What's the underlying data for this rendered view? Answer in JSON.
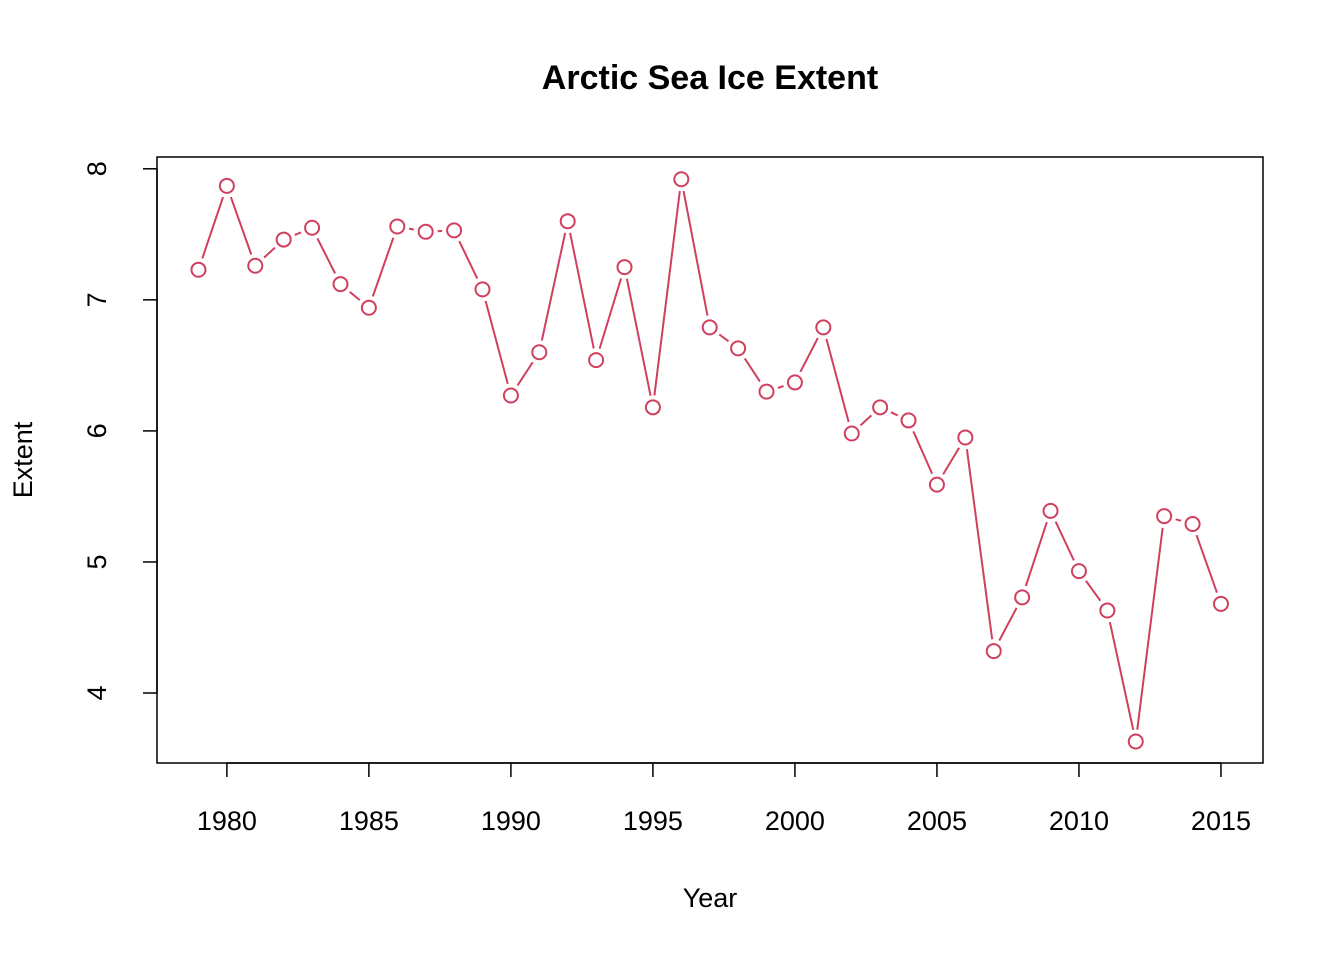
{
  "chart_data": {
    "type": "line",
    "title": "Arctic Sea Ice Extent",
    "x_label": "Year",
    "y_label": "Extent",
    "x": [
      1979,
      1980,
      1981,
      1982,
      1983,
      1984,
      1985,
      1986,
      1987,
      1988,
      1989,
      1990,
      1991,
      1992,
      1993,
      1994,
      1995,
      1996,
      1997,
      1998,
      1999,
      2000,
      2001,
      2002,
      2003,
      2004,
      2005,
      2006,
      2007,
      2008,
      2009,
      2010,
      2011,
      2012,
      2013,
      2014,
      2015
    ],
    "series": [
      {
        "color": "#d0405e",
        "values": [
          7.23,
          7.87,
          7.26,
          7.46,
          7.55,
          7.12,
          6.94,
          7.56,
          7.52,
          7.53,
          7.08,
          6.27,
          6.6,
          7.6,
          6.54,
          7.25,
          6.18,
          7.92,
          6.79,
          6.63,
          6.3,
          6.37,
          6.79,
          5.98,
          6.18,
          6.08,
          5.59,
          5.95,
          4.32,
          4.73,
          5.39,
          4.93,
          4.63,
          3.63,
          5.35,
          5.29,
          4.68
        ]
      }
    ],
    "xlim": [
      1977.54,
      2016.48
    ],
    "ylim": [
      3.466,
      8.09
    ],
    "xticks": [
      1980,
      1985,
      1990,
      1995,
      2000,
      2005,
      2010,
      2015
    ],
    "yticks": [
      4,
      5,
      6,
      7,
      8
    ]
  }
}
